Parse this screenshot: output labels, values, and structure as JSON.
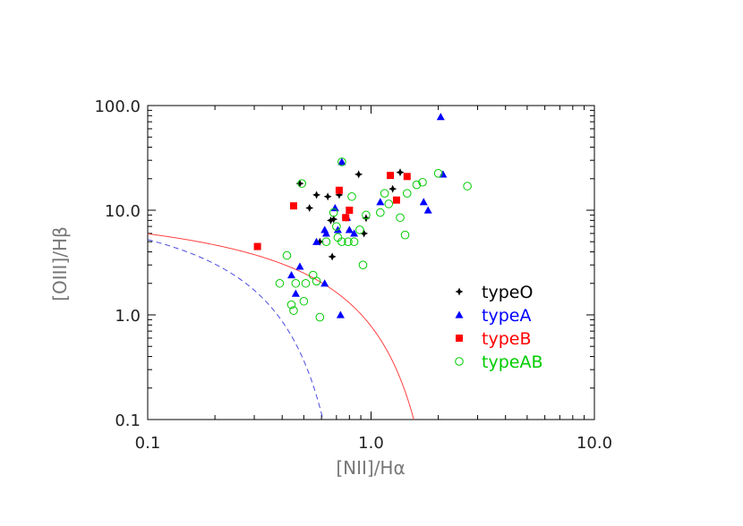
{
  "chart_data": {
    "type": "scatter",
    "xscale": "log",
    "yscale": "log",
    "xlim": [
      0.1,
      10.0
    ],
    "ylim": [
      0.1,
      100.0
    ],
    "xticks": [
      "0.1",
      "1.0",
      "10.0"
    ],
    "yticks": [
      "0.1",
      "1.0",
      "10.0",
      "100.0"
    ],
    "xlabel": "[NII]/Hα",
    "ylabel": "[OIII]/Hβ",
    "legend_position": "lower-right",
    "series": [
      {
        "name": "typeO",
        "marker": "star",
        "color": "#000000",
        "points": [
          [
            0.48,
            18.0
          ],
          [
            0.53,
            10.5
          ],
          [
            0.57,
            14.0
          ],
          [
            0.59,
            5.0
          ],
          [
            0.64,
            13.5
          ],
          [
            0.66,
            8.0
          ],
          [
            0.68,
            8.2
          ],
          [
            0.67,
            3.6
          ],
          [
            0.72,
            14.0
          ],
          [
            0.77,
            8.5
          ],
          [
            0.88,
            22.0
          ],
          [
            0.95,
            8.4
          ],
          [
            0.93,
            6.0
          ],
          [
            1.25,
            16.0
          ],
          [
            1.35,
            23.0
          ]
        ]
      },
      {
        "name": "typeA",
        "marker": "triangle",
        "color": "#0000ff",
        "points": [
          [
            2.05,
            78.0
          ],
          [
            2.1,
            22.0
          ],
          [
            0.74,
            29.0
          ],
          [
            0.69,
            10.5
          ],
          [
            0.71,
            6.5
          ],
          [
            0.62,
            6.5
          ],
          [
            0.63,
            6.0
          ],
          [
            0.57,
            5.0
          ],
          [
            0.78,
            8.5
          ],
          [
            0.8,
            6.5
          ],
          [
            0.84,
            6.0
          ],
          [
            1.1,
            12.0
          ],
          [
            1.72,
            12.0
          ],
          [
            1.8,
            10.0
          ],
          [
            0.48,
            2.9
          ],
          [
            0.44,
            2.4
          ],
          [
            0.46,
            1.6
          ],
          [
            0.62,
            2.0
          ],
          [
            0.73,
            1.0
          ]
        ]
      },
      {
        "name": "typeB",
        "marker": "square",
        "color": "#ff0000",
        "points": [
          [
            0.31,
            4.5
          ],
          [
            0.45,
            11.0
          ],
          [
            0.72,
            15.5
          ],
          [
            0.77,
            8.5
          ],
          [
            0.8,
            10.0
          ],
          [
            1.22,
            21.5
          ],
          [
            1.3,
            12.5
          ],
          [
            1.45,
            21.0
          ]
        ]
      },
      {
        "name": "typeAB",
        "marker": "circle",
        "color": "#00cc00",
        "points": [
          [
            0.49,
            18.0
          ],
          [
            0.74,
            29.0
          ],
          [
            0.68,
            9.5
          ],
          [
            0.7,
            7.0
          ],
          [
            0.63,
            5.0
          ],
          [
            0.71,
            5.5
          ],
          [
            0.74,
            5.0
          ],
          [
            0.79,
            5.0
          ],
          [
            0.84,
            5.0
          ],
          [
            0.89,
            6.5
          ],
          [
            0.82,
            13.5
          ],
          [
            0.95,
            9.0
          ],
          [
            1.1,
            9.5
          ],
          [
            1.15,
            14.5
          ],
          [
            1.2,
            11.5
          ],
          [
            1.35,
            8.5
          ],
          [
            1.45,
            14.5
          ],
          [
            1.42,
            5.8
          ],
          [
            1.6,
            17.5
          ],
          [
            1.7,
            18.5
          ],
          [
            2.0,
            22.5
          ],
          [
            2.7,
            17.0
          ],
          [
            0.42,
            3.7
          ],
          [
            0.55,
            2.4
          ],
          [
            0.51,
            2.0
          ],
          [
            0.46,
            2.0
          ],
          [
            0.39,
            2.0
          ],
          [
            0.44,
            1.25
          ],
          [
            0.45,
            1.1
          ],
          [
            0.5,
            1.35
          ],
          [
            0.57,
            2.1
          ],
          [
            0.59,
            0.95
          ],
          [
            0.92,
            3.0
          ]
        ]
      }
    ],
    "curves": [
      {
        "style": "solid",
        "color": "#ff4040",
        "formula": "0.61/(log10(x)-0.47)+1.19"
      },
      {
        "style": "dashed",
        "color": "#4a4adf",
        "formula": "0.61/(log10(x)-0.05)+1.3"
      }
    ]
  }
}
